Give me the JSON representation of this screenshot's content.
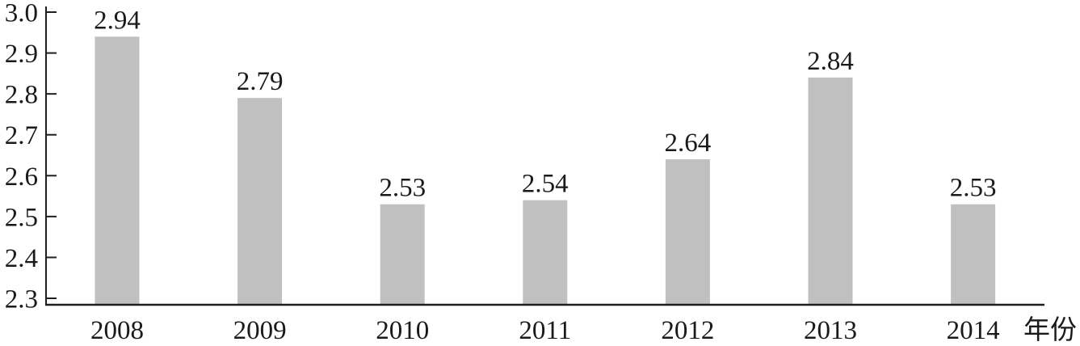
{
  "chart_data": {
    "type": "bar",
    "title": "",
    "categories": [
      "2008",
      "2009",
      "2010",
      "2011",
      "2012",
      "2013",
      "2014"
    ],
    "values": [
      2.94,
      2.79,
      2.53,
      2.54,
      2.64,
      2.84,
      2.53
    ],
    "value_labels": [
      "2.94",
      "2.79",
      "2.53",
      "2.54",
      "2.64",
      "2.84",
      "2.53"
    ],
    "xlabel": "年份",
    "ylabel": "",
    "ylim": [
      2.3,
      3.0
    ],
    "y_ticks": [
      "2.3",
      "2.4",
      "2.5",
      "2.6",
      "2.7",
      "2.8",
      "2.9",
      "3.0"
    ],
    "grid": false,
    "legend": "none",
    "bar_color": "#c0c0c0",
    "axis_color": "#1f1f1f",
    "text_color": "#1a1a1a",
    "background_color": "#ffffff"
  }
}
